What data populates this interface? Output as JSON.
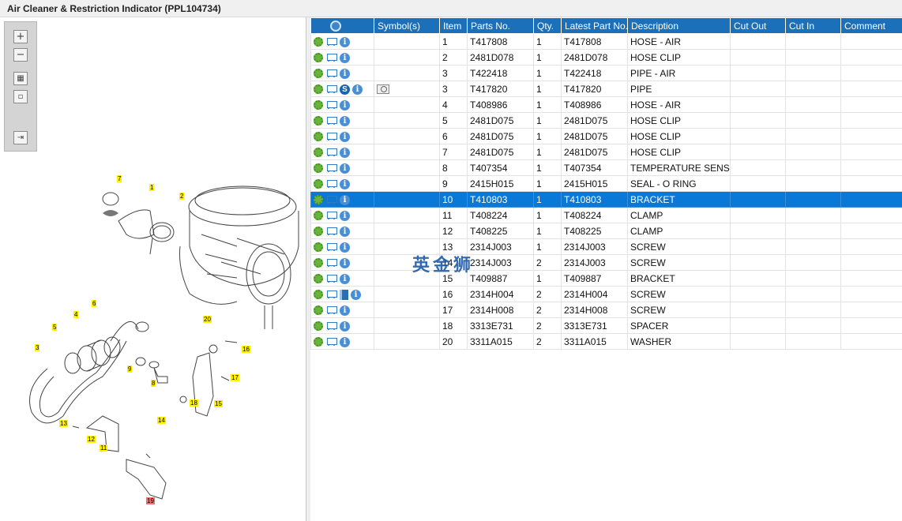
{
  "title": "Air Cleaner & Restriction Indicator (PPL104734)",
  "watermark": "英金狮",
  "toolbar": {
    "zoom_in_icon": "plus",
    "zoom_out_icon": "minus",
    "fit_icon": "grid",
    "reset_icon": "square",
    "export_icon": "arrow-right"
  },
  "table": {
    "columns": [
      "",
      "Symbol(s)",
      "Item",
      "Parts No.",
      "Qty.",
      "Latest Part No.",
      "Description",
      "Cut Out",
      "Cut In",
      "Comment"
    ],
    "rows": [
      {
        "icons": [
          "gear",
          "cart",
          "info"
        ],
        "symbol": "",
        "item": "1",
        "part": "T417808",
        "qty": "1",
        "latest": "T417808",
        "desc": "HOSE - AIR"
      },
      {
        "icons": [
          "gear",
          "cart",
          "info"
        ],
        "symbol": "",
        "item": "2",
        "part": "2481D078",
        "qty": "1",
        "latest": "2481D078",
        "desc": "HOSE CLIP"
      },
      {
        "icons": [
          "gear",
          "cart",
          "info"
        ],
        "symbol": "",
        "item": "3",
        "part": "T422418",
        "qty": "1",
        "latest": "T422418",
        "desc": "PIPE - AIR"
      },
      {
        "icons": [
          "gear",
          "cart",
          "s",
          "info"
        ],
        "symbol": "magnify",
        "item": "3",
        "part": "T417820",
        "qty": "1",
        "latest": "T417820",
        "desc": "PIPE"
      },
      {
        "icons": [
          "gear",
          "cart",
          "info"
        ],
        "symbol": "",
        "item": "4",
        "part": "T408986",
        "qty": "1",
        "latest": "T408986",
        "desc": "HOSE - AIR"
      },
      {
        "icons": [
          "gear",
          "cart",
          "info"
        ],
        "symbol": "",
        "item": "5",
        "part": "2481D075",
        "qty": "1",
        "latest": "2481D075",
        "desc": "HOSE CLIP"
      },
      {
        "icons": [
          "gear",
          "cart",
          "info"
        ],
        "symbol": "",
        "item": "6",
        "part": "2481D075",
        "qty": "1",
        "latest": "2481D075",
        "desc": "HOSE CLIP"
      },
      {
        "icons": [
          "gear",
          "cart",
          "info"
        ],
        "symbol": "",
        "item": "7",
        "part": "2481D075",
        "qty": "1",
        "latest": "2481D075",
        "desc": "HOSE CLIP"
      },
      {
        "icons": [
          "gear",
          "cart",
          "info"
        ],
        "symbol": "",
        "item": "8",
        "part": "T407354",
        "qty": "1",
        "latest": "T407354",
        "desc": "TEMPERATURE SENSOR"
      },
      {
        "icons": [
          "gear",
          "cart",
          "info"
        ],
        "symbol": "",
        "item": "9",
        "part": "2415H015",
        "qty": "1",
        "latest": "2415H015",
        "desc": "SEAL - O RING"
      },
      {
        "icons": [
          "gear",
          "cart",
          "info"
        ],
        "symbol": "",
        "item": "10",
        "part": "T410803",
        "qty": "1",
        "latest": "T410803",
        "desc": "BRACKET",
        "selected": true
      },
      {
        "icons": [
          "gear",
          "cart",
          "info"
        ],
        "symbol": "",
        "item": "11",
        "part": "T408224",
        "qty": "1",
        "latest": "T408224",
        "desc": "CLAMP"
      },
      {
        "icons": [
          "gear",
          "cart",
          "info"
        ],
        "symbol": "",
        "item": "12",
        "part": "T408225",
        "qty": "1",
        "latest": "T408225",
        "desc": "CLAMP"
      },
      {
        "icons": [
          "gear",
          "cart",
          "info"
        ],
        "symbol": "",
        "item": "13",
        "part": "2314J003",
        "qty": "1",
        "latest": "2314J003",
        "desc": "SCREW"
      },
      {
        "icons": [
          "gear",
          "cart",
          "info"
        ],
        "symbol": "",
        "item": "14",
        "part": "2314J003",
        "qty": "2",
        "latest": "2314J003",
        "desc": "SCREW"
      },
      {
        "icons": [
          "gear",
          "cart",
          "info"
        ],
        "symbol": "",
        "item": "15",
        "part": "T409887",
        "qty": "1",
        "latest": "T409887",
        "desc": "BRACKET"
      },
      {
        "icons": [
          "gear",
          "cart",
          "book",
          "info"
        ],
        "symbol": "",
        "item": "16",
        "part": "2314H004",
        "qty": "2",
        "latest": "2314H004",
        "desc": "SCREW"
      },
      {
        "icons": [
          "gear",
          "cart",
          "info"
        ],
        "symbol": "",
        "item": "17",
        "part": "2314H008",
        "qty": "2",
        "latest": "2314H008",
        "desc": "SCREW"
      },
      {
        "icons": [
          "gear",
          "cart",
          "info"
        ],
        "symbol": "",
        "item": "18",
        "part": "3313E731",
        "qty": "2",
        "latest": "3313E731",
        "desc": "SPACER"
      },
      {
        "icons": [
          "gear",
          "cart",
          "info"
        ],
        "symbol": "",
        "item": "20",
        "part": "3311A015",
        "qty": "2",
        "latest": "3311A015",
        "desc": "WASHER"
      }
    ]
  },
  "diagram": {
    "callouts": [
      "7",
      "1",
      "2",
      "4",
      "6",
      "5",
      "3",
      "9",
      "8",
      "20",
      "16",
      "17",
      "18",
      "15",
      "13",
      "12",
      "11",
      "14",
      "19"
    ]
  }
}
